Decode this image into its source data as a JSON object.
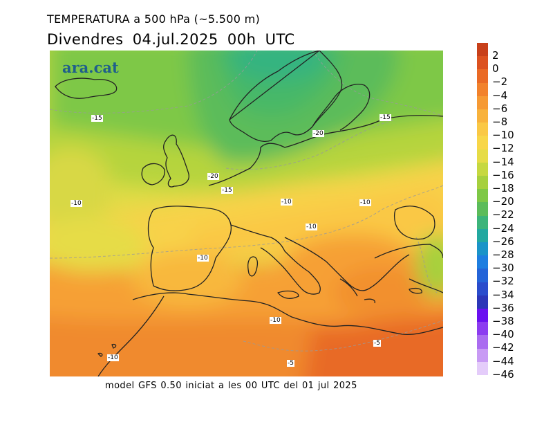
{
  "header": {
    "variable_title": "TEMPERATURA a 500 hPa (~5.500 m)",
    "date_line": "Divendres  04.jul.2025 00h  UTC"
  },
  "logo": {
    "text": "ara.cat"
  },
  "footer": {
    "model_info": "model GFS 0.50 iniciat a les 00 UTC del 01 jul 2025"
  },
  "contour_labels": [
    "-15",
    "-15",
    "-20",
    "-20",
    "-15",
    "-10",
    "-10",
    "-10",
    "-10",
    "-10",
    "-10",
    "-10",
    "-5",
    "-5"
  ],
  "colorbar": {
    "labels": [
      "2",
      "0",
      "−2",
      "−4",
      "−6",
      "−8",
      "−10",
      "−12",
      "−14",
      "−16",
      "−18",
      "−20",
      "−22",
      "−24",
      "−26",
      "−28",
      "−30",
      "−32",
      "−34",
      "−36",
      "−38",
      "−40",
      "−42",
      "−44",
      "−46"
    ],
    "colors": [
      "#c8401a",
      "#dc5220",
      "#ea6a25",
      "#f2822c",
      "#f69a34",
      "#f8b23c",
      "#fac845",
      "#f8d648",
      "#e6dc46",
      "#c6d840",
      "#a6d03e",
      "#7ec846",
      "#5cbc5a",
      "#3cb47a",
      "#22a8a0",
      "#1a94c8",
      "#1e7ee0",
      "#2464d8",
      "#2a4ccc",
      "#2c36b8",
      "#6a10f0",
      "#8c3cf0",
      "#aa6cf0",
      "#c89af4",
      "#e4ccfa"
    ]
  }
}
